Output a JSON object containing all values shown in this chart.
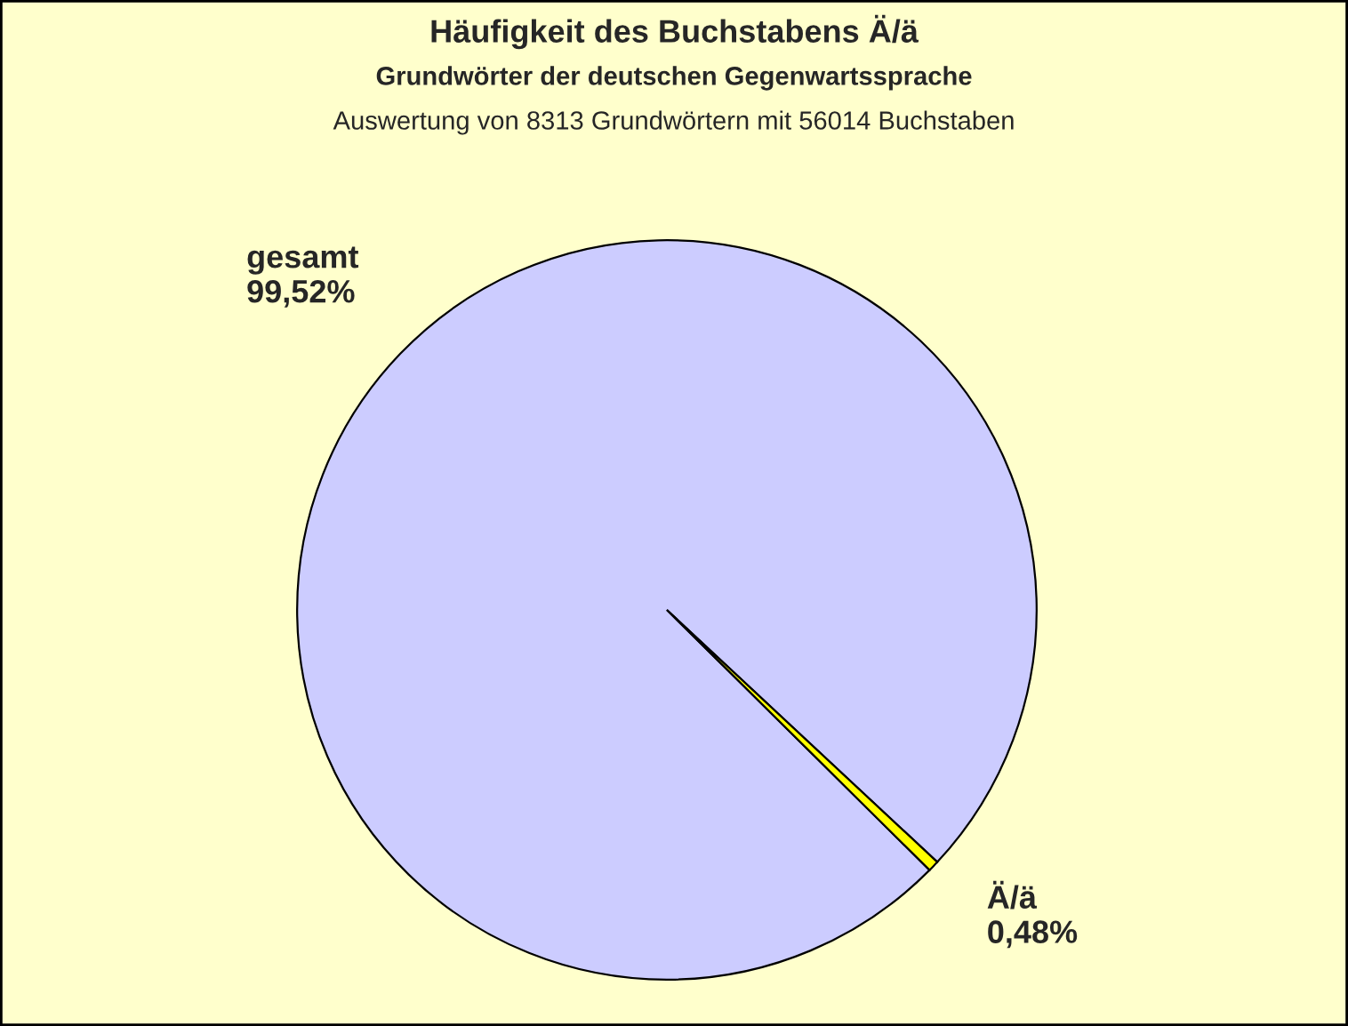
{
  "chart_data": {
    "type": "pie",
    "title": "Häufigkeit des Buchstabens Ä/ä",
    "subtitle": "Grundwörter der deutschen Gegenwartssprache",
    "annotations": [
      "Auswertung von 8313 Grundwörtern mit 56014 Buchstaben"
    ],
    "categories": [
      "gesamt",
      "Ä/ä"
    ],
    "values": [
      99.52,
      0.48
    ],
    "value_labels": [
      "99,52%",
      "0,48%"
    ],
    "colors": [
      "#ccccff",
      "#ffff00"
    ],
    "legend": false
  }
}
